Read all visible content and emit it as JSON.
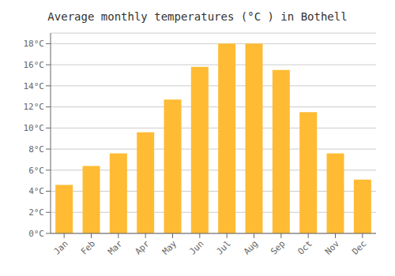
{
  "chart_data": {
    "type": "bar",
    "title": "Average monthly temperatures (°C ) in Bothell",
    "categories": [
      "Jan",
      "Feb",
      "Mar",
      "Apr",
      "May",
      "Jun",
      "Jul",
      "Aug",
      "Sep",
      "Oct",
      "Nov",
      "Dec"
    ],
    "values": [
      4.6,
      6.4,
      7.6,
      9.6,
      12.7,
      15.8,
      18.0,
      18.0,
      15.5,
      11.5,
      7.6,
      5.1
    ],
    "color": "#FFBB33",
    "ylim": [
      0,
      19
    ],
    "yticks": [
      {
        "value": 0,
        "label": "0°C"
      },
      {
        "value": 2,
        "label": "2°C"
      },
      {
        "value": 4,
        "label": "4°C"
      },
      {
        "value": 6,
        "label": "6°C"
      },
      {
        "value": 8,
        "label": "8°C"
      },
      {
        "value": 10,
        "label": "10°C"
      },
      {
        "value": 12,
        "label": "12°C"
      },
      {
        "value": 14,
        "label": "14°C"
      },
      {
        "value": 16,
        "label": "16°C"
      },
      {
        "value": 18,
        "label": "18°C"
      }
    ],
    "grid": true
  }
}
